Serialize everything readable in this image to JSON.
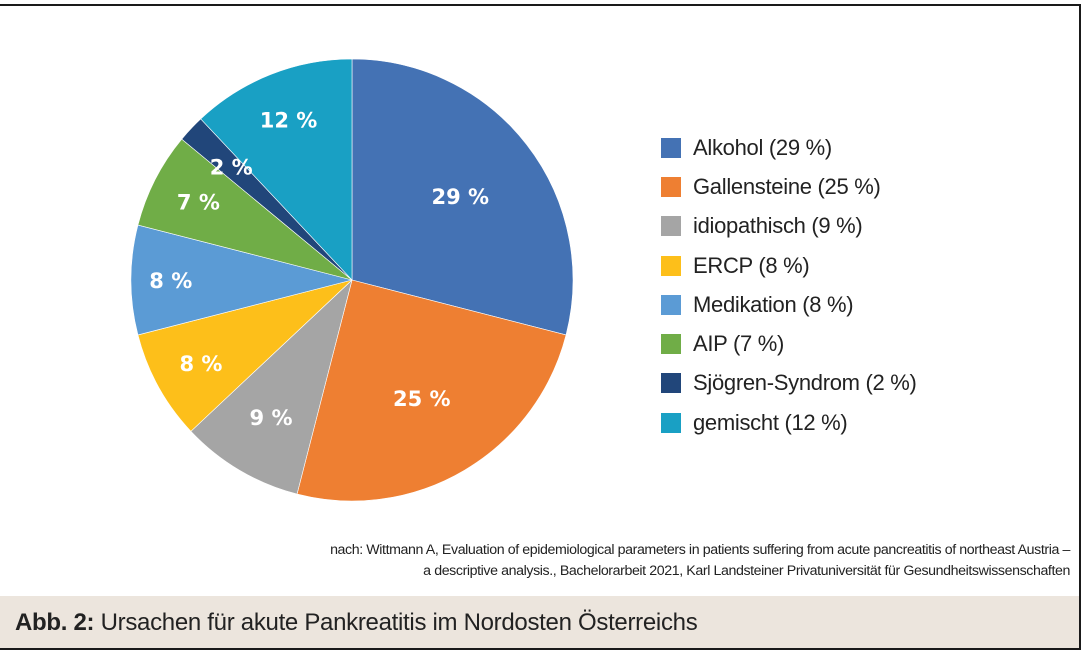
{
  "chart_data": {
    "type": "pie",
    "start": "top",
    "direction": "clockwise",
    "slices": [
      {
        "name": "Alkohol",
        "value": 29,
        "label": "29 %",
        "legend": "Alkohol (29 %)",
        "color": "#4472b4"
      },
      {
        "name": "Gallensteine",
        "value": 25,
        "label": "25 %",
        "legend": "Gallensteine (25 %)",
        "color": "#ee7f32"
      },
      {
        "name": "idiopathisch",
        "value": 9,
        "label": "9 %",
        "legend": "idiopathisch (9 %)",
        "color": "#a5a5a5"
      },
      {
        "name": "ERCP",
        "value": 8,
        "label": "8 %",
        "legend": "ERCP (8 %)",
        "color": "#fdbf1a"
      },
      {
        "name": "Medikation",
        "value": 8,
        "label": "8 %",
        "legend": "Medikation (8 %)",
        "color": "#5b9bd5"
      },
      {
        "name": "AIP",
        "value": 7,
        "label": "7 %",
        "legend": "AIP (7 %)",
        "color": "#70ad47"
      },
      {
        "name": "Sjögren-Syndrom",
        "value": 2,
        "label": "2 %",
        "legend": "Sjögren-Syndrom (2 %)",
        "color": "#21467a"
      },
      {
        "name": "gemischt",
        "value": 12,
        "label": "12 %",
        "legend": "gemischt (12 %)",
        "color": "#19a0c4"
      }
    ],
    "legend_position": "right"
  },
  "source": {
    "line1": "nach: Wittmann A, Evaluation of epidemiological parameters in patients suffering from acute pancreatitis of northeast Austria –",
    "line2": "a descriptive analysis., Bachelorarbeit 2021, Karl Landsteiner Privatuniversität für Gesundheitswissenschaften"
  },
  "caption": {
    "label": "Abb. 2:",
    "title": "Ursachen für akute Pankreatitis im Nordosten Österreichs"
  }
}
